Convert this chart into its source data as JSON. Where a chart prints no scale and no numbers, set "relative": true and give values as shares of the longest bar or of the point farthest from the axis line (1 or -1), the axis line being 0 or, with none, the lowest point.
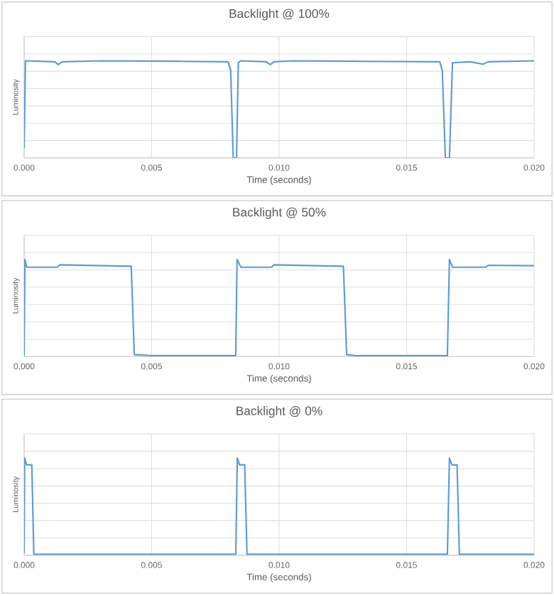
{
  "chart_data": [
    {
      "type": "line",
      "title": "Backlight @ 100%",
      "xlabel": "Time (seconds)",
      "ylabel": "Luminosity",
      "relative": true,
      "grid": true,
      "color": "#5b9bd5",
      "xlim": [
        0,
        0.02
      ],
      "xticks": [
        {
          "value": 0,
          "label": "0.000"
        },
        {
          "value": 0.005,
          "label": "0.005"
        },
        {
          "value": 0.01,
          "label": "0.010"
        },
        {
          "value": 0.015,
          "label": "0.015"
        },
        {
          "value": 0.02,
          "label": "0.020"
        }
      ],
      "x": [
        0,
        5e-05,
        0.0012,
        0.00134,
        0.0015,
        0.003,
        0.006,
        0.008,
        0.0081,
        0.0082,
        0.00833,
        0.0084,
        0.0085,
        0.0095,
        0.00965,
        0.0098,
        0.0105,
        0.013,
        0.0163,
        0.0164,
        0.01652,
        0.01668,
        0.0168,
        0.0175,
        0.018,
        0.0182,
        0.02
      ],
      "values": [
        0.1,
        1,
        0.99,
        0.96,
        0.99,
        1,
        0.995,
        0.99,
        0.9,
        0,
        0,
        0.98,
        1,
        0.99,
        0.96,
        0.99,
        1,
        0.995,
        0.99,
        0.9,
        0,
        0,
        0.98,
        0.99,
        0.965,
        0.99,
        1
      ]
    },
    {
      "type": "line",
      "title": "Backlight @ 50%",
      "xlabel": "Time (seconds)",
      "ylabel": "Luminosity",
      "relative": true,
      "grid": true,
      "color": "#5b9bd5",
      "xlim": [
        0,
        0.02
      ],
      "xticks": [
        {
          "value": 0,
          "label": "0.000"
        },
        {
          "value": 0.005,
          "label": "0.005"
        },
        {
          "value": 0.01,
          "label": "0.010"
        },
        {
          "value": 0.015,
          "label": "0.015"
        },
        {
          "value": 0.02,
          "label": "0.020"
        }
      ],
      "x": [
        0,
        3e-05,
        0.0001,
        0.0013,
        0.0014,
        0.0042,
        0.00432,
        0.005,
        0.0083,
        0.00835,
        0.0085,
        0.0097,
        0.0098,
        0.01252,
        0.01265,
        0.013,
        0.0166,
        0.01668,
        0.0168,
        0.0181,
        0.0182,
        0.02
      ],
      "values": [
        0,
        1,
        0.92,
        0.92,
        0.945,
        0.93,
        0.02,
        0.01,
        0.01,
        1,
        0.92,
        0.92,
        0.945,
        0.93,
        0.02,
        0.01,
        0.01,
        1,
        0.92,
        0.92,
        0.94,
        0.935
      ]
    },
    {
      "type": "line",
      "title": "Backlight @ 0%",
      "xlabel": "Time (seconds)",
      "ylabel": "Luminosity",
      "relative": true,
      "grid": true,
      "color": "#5b9bd5",
      "xlim": [
        0,
        0.02
      ],
      "xticks": [
        {
          "value": 0,
          "label": "0.000"
        },
        {
          "value": 0.005,
          "label": "0.005"
        },
        {
          "value": 0.01,
          "label": "0.010"
        },
        {
          "value": 0.015,
          "label": "0.015"
        },
        {
          "value": 0.02,
          "label": "0.020"
        }
      ],
      "x": [
        0,
        2e-05,
        0.0001,
        0.0003,
        0.00038,
        0.0083,
        0.00836,
        0.00845,
        0.00865,
        0.00874,
        0.0166,
        0.01668,
        0.01678,
        0.01698,
        0.01707,
        0.02
      ],
      "values": [
        0.02,
        1,
        0.93,
        0.93,
        0.01,
        0.01,
        1,
        0.93,
        0.93,
        0.01,
        0.01,
        1,
        0.93,
        0.93,
        0.01,
        0.01
      ]
    }
  ]
}
